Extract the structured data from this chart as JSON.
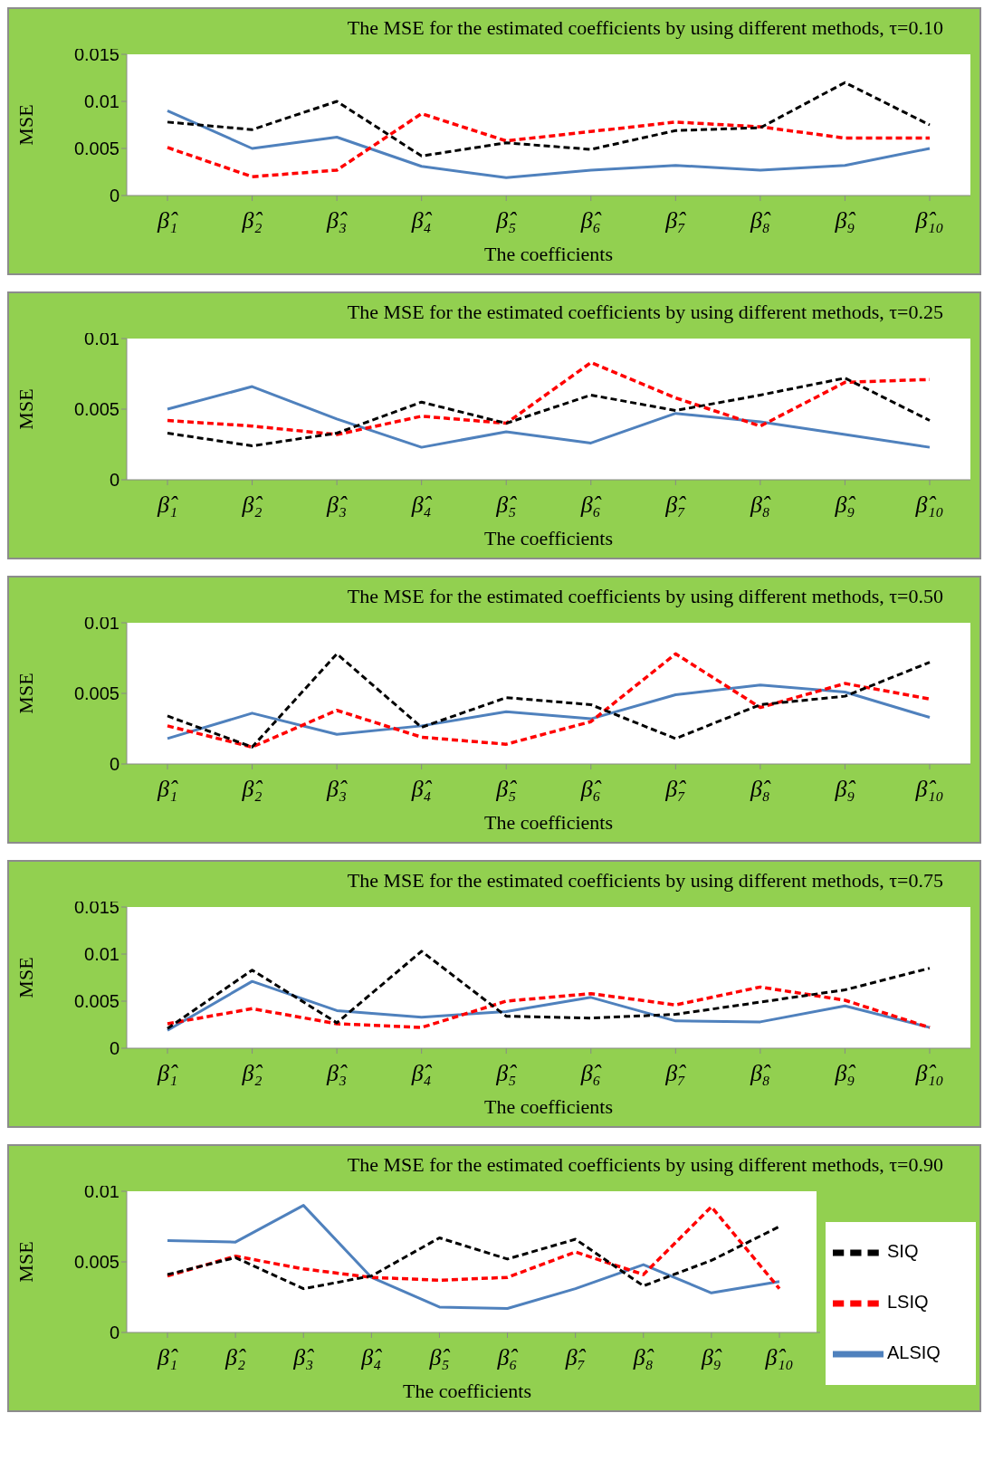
{
  "chart_data": [
    {
      "type": "line",
      "title": "The MSE for the estimated coefficients by using different methods, τ=0.10",
      "xlabel": "The coefficients",
      "ylabel": "MSE",
      "categories": [
        "β̂₁",
        "β̂₂",
        "β̂₃",
        "β̂₄",
        "β̂₅",
        "β̂₆",
        "β̂₇",
        "β̂₈",
        "β̂₉",
        "β̂₁₀"
      ],
      "ylim": [
        0,
        0.015
      ],
      "yticks": [
        0,
        0.005,
        0.01,
        0.015
      ],
      "grid": false,
      "legend": false,
      "series": [
        {
          "color": "#000000",
          "line_style": "dashed",
          "values": [
            0.0078,
            0.007,
            0.01,
            0.0042,
            0.0056,
            0.0049,
            0.0069,
            0.0072,
            0.012,
            0.0075
          ]
        },
        {
          "color": "#ff0000",
          "line_style": "dashed",
          "values": [
            0.0051,
            0.002,
            0.0027,
            0.0087,
            0.0058,
            0.0068,
            0.0078,
            0.0073,
            0.0061,
            0.0061
          ]
        },
        {
          "color": "#4f81bd",
          "line_style": "solid",
          "values": [
            0.009,
            0.005,
            0.0062,
            0.0031,
            0.0019,
            0.0027,
            0.0032,
            0.0027,
            0.0032,
            0.005
          ]
        }
      ]
    },
    {
      "type": "line",
      "title": "The MSE for the estimated coefficients by using different methods, τ=0.25",
      "xlabel": "The coefficients",
      "ylabel": "MSE",
      "categories": [
        "β̂₁",
        "β̂₂",
        "β̂₃",
        "β̂₄",
        "β̂₅",
        "β̂₆",
        "β̂₇",
        "β̂₈",
        "β̂₉",
        "β̂₁₀"
      ],
      "ylim": [
        0,
        0.01
      ],
      "yticks": [
        0,
        0.005,
        0.01
      ],
      "grid": false,
      "legend": false,
      "series": [
        {
          "color": "#000000",
          "line_style": "dashed",
          "values": [
            0.0033,
            0.0024,
            0.0033,
            0.0055,
            0.004,
            0.006,
            0.0049,
            0.006,
            0.0072,
            0.0042
          ]
        },
        {
          "color": "#ff0000",
          "line_style": "dashed",
          "values": [
            0.0042,
            0.0038,
            0.0032,
            0.0045,
            0.004,
            0.0083,
            0.0058,
            0.0038,
            0.0069,
            0.0071
          ]
        },
        {
          "color": "#4f81bd",
          "line_style": "solid",
          "values": [
            0.005,
            0.0066,
            0.0043,
            0.0023,
            0.0034,
            0.0026,
            0.0047,
            0.0041,
            0.0032,
            0.0023
          ]
        }
      ]
    },
    {
      "type": "line",
      "title": "The MSE for the estimated coefficients by using different methods, τ=0.50",
      "xlabel": "The coefficients",
      "ylabel": "MSE",
      "categories": [
        "β̂₁",
        "β̂₂",
        "β̂₃",
        "β̂₄",
        "β̂₅",
        "β̂₆",
        "β̂₇",
        "β̂₈",
        "β̂₉",
        "β̂₁₀"
      ],
      "ylim": [
        0,
        0.01
      ],
      "yticks": [
        0,
        0.005,
        0.01
      ],
      "grid": false,
      "legend": false,
      "series": [
        {
          "color": "#000000",
          "line_style": "dashed",
          "values": [
            0.0034,
            0.0012,
            0.0078,
            0.0026,
            0.0047,
            0.0042,
            0.0018,
            0.0042,
            0.0048,
            0.0072
          ]
        },
        {
          "color": "#ff0000",
          "line_style": "dashed",
          "values": [
            0.0027,
            0.0012,
            0.0038,
            0.0019,
            0.0014,
            0.003,
            0.0078,
            0.004,
            0.0057,
            0.0046
          ]
        },
        {
          "color": "#4f81bd",
          "line_style": "solid",
          "values": [
            0.0018,
            0.0036,
            0.0021,
            0.0027,
            0.0037,
            0.0032,
            0.0049,
            0.0056,
            0.0051,
            0.0033
          ]
        }
      ]
    },
    {
      "type": "line",
      "title": "The MSE for the estimated coefficients by using different methods, τ=0.75",
      "xlabel": "The coefficients",
      "ylabel": "MSE",
      "categories": [
        "β̂₁",
        "β̂₂",
        "β̂₃",
        "β̂₄",
        "β̂₅",
        "β̂₆",
        "β̂₇",
        "β̂₈",
        "β̂₉",
        "β̂₁₀"
      ],
      "ylim": [
        0,
        0.015
      ],
      "yticks": [
        0,
        0.005,
        0.01,
        0.015
      ],
      "grid": false,
      "legend": false,
      "series": [
        {
          "color": "#000000",
          "line_style": "dashed",
          "values": [
            0.0021,
            0.0083,
            0.0027,
            0.0103,
            0.0034,
            0.0032,
            0.0036,
            0.0049,
            0.0062,
            0.0085
          ]
        },
        {
          "color": "#ff0000",
          "line_style": "dashed",
          "values": [
            0.0026,
            0.0042,
            0.0026,
            0.0022,
            0.005,
            0.0058,
            0.0046,
            0.0065,
            0.0051,
            0.0022
          ]
        },
        {
          "color": "#4f81bd",
          "line_style": "solid",
          "values": [
            0.0019,
            0.0071,
            0.004,
            0.0033,
            0.0039,
            0.0054,
            0.0029,
            0.0028,
            0.0045,
            0.0022
          ]
        }
      ]
    },
    {
      "type": "line",
      "title": "The MSE for the estimated coefficients by using different methods, τ=0.90",
      "xlabel": "The coefficients",
      "ylabel": "MSE",
      "categories": [
        "β̂₁",
        "β̂₂",
        "β̂₃",
        "β̂₄",
        "β̂₅",
        "β̂₆",
        "β̂₇",
        "β̂₈",
        "β̂₉",
        "β̂₁₀"
      ],
      "ylim": [
        0,
        0.01
      ],
      "yticks": [
        0,
        0.005,
        0.01
      ],
      "grid": false,
      "legend": "right",
      "series": [
        {
          "name": "SIQ",
          "color": "#000000",
          "line_style": "dashed",
          "values": [
            0.0041,
            0.0053,
            0.0031,
            0.004,
            0.0067,
            0.0052,
            0.0066,
            0.0033,
            0.0051,
            0.0075
          ]
        },
        {
          "name": "LSIQ",
          "color": "#ff0000",
          "line_style": "dashed",
          "values": [
            0.004,
            0.0054,
            0.0045,
            0.0039,
            0.0037,
            0.0039,
            0.0057,
            0.0041,
            0.0089,
            0.0031
          ]
        },
        {
          "name": "ALSIQ",
          "color": "#4f81bd",
          "line_style": "solid",
          "values": [
            0.0065,
            0.0064,
            0.009,
            0.0039,
            0.0018,
            0.0017,
            0.0031,
            0.0048,
            0.0028,
            0.0036
          ]
        }
      ]
    }
  ]
}
